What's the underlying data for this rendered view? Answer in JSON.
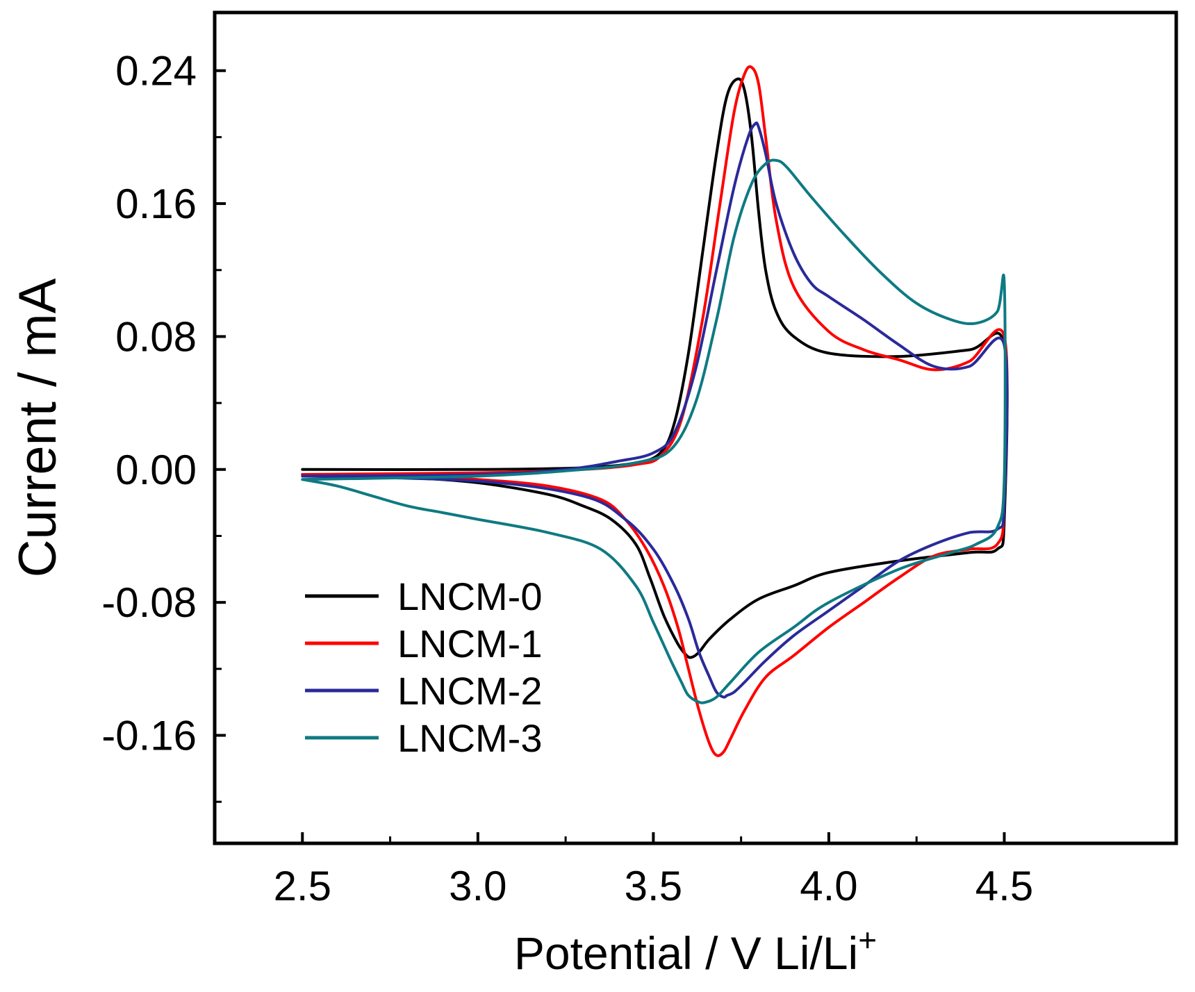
{
  "chart_data": {
    "type": "line",
    "title": "",
    "xlabel": "Potential / V Li/Li",
    "xlabel_superscript": "+",
    "ylabel": "Current / mA",
    "xlim": [
      2.25,
      4.99
    ],
    "ylim": [
      -0.225,
      0.275
    ],
    "xticks": [
      2.5,
      3.0,
      3.5,
      4.0,
      4.5
    ],
    "xtick_labels": [
      "2.5",
      "3.0",
      "3.5",
      "4.0",
      "4.5"
    ],
    "xminor": [
      2.75,
      3.25,
      3.75,
      4.25
    ],
    "yticks": [
      -0.16,
      -0.08,
      0.0,
      0.08,
      0.16,
      0.24
    ],
    "ytick_labels": [
      "-0.16",
      "-0.08",
      "0.00",
      "0.08",
      "0.16",
      "0.24"
    ],
    "yminor": [
      -0.2,
      -0.12,
      -0.04,
      0.04,
      0.12,
      0.2
    ],
    "grid": false,
    "legend_position": "bottom-left",
    "series": [
      {
        "name": "LNCM-0",
        "color": "#000000",
        "x": [
          2.5,
          3.0,
          3.3,
          3.45,
          3.52,
          3.56,
          3.6,
          3.64,
          3.68,
          3.71,
          3.74,
          3.76,
          3.78,
          3.8,
          3.82,
          3.85,
          3.9,
          4.0,
          4.2,
          4.4,
          4.5,
          4.5,
          4.48,
          4.4,
          4.2,
          4.0,
          3.9,
          3.8,
          3.72,
          3.66,
          3.63,
          3.61,
          3.595,
          3.57,
          3.53,
          3.49,
          3.45,
          3.38,
          3.3,
          3.2,
          3.0,
          2.8,
          2.5
        ],
        "y": [
          0.0,
          0.0,
          0.001,
          0.004,
          0.01,
          0.028,
          0.07,
          0.13,
          0.19,
          0.225,
          0.235,
          0.228,
          0.2,
          0.155,
          0.12,
          0.095,
          0.08,
          0.07,
          0.068,
          0.072,
          0.075,
          -0.03,
          -0.048,
          -0.05,
          -0.055,
          -0.062,
          -0.07,
          -0.078,
          -0.09,
          -0.102,
          -0.11,
          -0.113,
          -0.112,
          -0.105,
          -0.088,
          -0.065,
          -0.045,
          -0.03,
          -0.022,
          -0.015,
          -0.008,
          -0.005,
          -0.003
        ]
      },
      {
        "name": "LNCM-1",
        "color": "#ff0000",
        "x": [
          2.5,
          3.0,
          3.3,
          3.45,
          3.52,
          3.58,
          3.64,
          3.69,
          3.73,
          3.76,
          3.78,
          3.8,
          3.82,
          3.85,
          3.9,
          4.0,
          4.1,
          4.2,
          4.3,
          4.4,
          4.5,
          4.5,
          4.48,
          4.4,
          4.3,
          4.2,
          4.1,
          4.0,
          3.9,
          3.82,
          3.76,
          3.72,
          3.7,
          3.68,
          3.66,
          3.63,
          3.6,
          3.57,
          3.53,
          3.48,
          3.42,
          3.35,
          3.2,
          3.0,
          2.8,
          2.5
        ],
        "y": [
          -0.003,
          -0.002,
          0.0,
          0.003,
          0.008,
          0.03,
          0.09,
          0.16,
          0.215,
          0.238,
          0.242,
          0.232,
          0.2,
          0.15,
          0.11,
          0.083,
          0.072,
          0.066,
          0.06,
          0.065,
          0.08,
          -0.02,
          -0.045,
          -0.048,
          -0.052,
          -0.065,
          -0.08,
          -0.095,
          -0.112,
          -0.125,
          -0.145,
          -0.162,
          -0.17,
          -0.172,
          -0.165,
          -0.145,
          -0.12,
          -0.095,
          -0.07,
          -0.048,
          -0.03,
          -0.018,
          -0.01,
          -0.006,
          -0.004,
          -0.003
        ]
      },
      {
        "name": "LNCM-2",
        "color": "#2a2a9a",
        "x": [
          2.5,
          3.0,
          3.25,
          3.4,
          3.5,
          3.56,
          3.62,
          3.68,
          3.73,
          3.77,
          3.79,
          3.8,
          3.82,
          3.85,
          3.9,
          3.95,
          4.0,
          4.1,
          4.2,
          4.3,
          4.4,
          4.5,
          4.5,
          4.48,
          4.4,
          4.3,
          4.2,
          4.1,
          4.0,
          3.9,
          3.82,
          3.76,
          3.73,
          3.71,
          3.7,
          3.68,
          3.66,
          3.63,
          3.6,
          3.56,
          3.5,
          3.42,
          3.3,
          3.0,
          2.5
        ],
        "y": [
          -0.004,
          -0.003,
          0.0,
          0.005,
          0.01,
          0.022,
          0.06,
          0.12,
          0.17,
          0.2,
          0.208,
          0.206,
          0.19,
          0.16,
          0.13,
          0.112,
          0.104,
          0.09,
          0.075,
          0.062,
          0.062,
          0.075,
          -0.02,
          -0.036,
          -0.038,
          -0.045,
          -0.055,
          -0.07,
          -0.085,
          -0.1,
          -0.115,
          -0.128,
          -0.134,
          -0.136,
          -0.137,
          -0.134,
          -0.125,
          -0.11,
          -0.09,
          -0.07,
          -0.048,
          -0.03,
          -0.016,
          -0.007,
          -0.004
        ]
      },
      {
        "name": "LNCM-3",
        "color": "#0e7a82",
        "x": [
          2.5,
          3.0,
          3.3,
          3.45,
          3.55,
          3.62,
          3.68,
          3.73,
          3.78,
          3.82,
          3.85,
          3.88,
          3.95,
          4.05,
          4.15,
          4.25,
          4.35,
          4.42,
          4.48,
          4.5,
          4.5,
          4.48,
          4.42,
          4.35,
          4.2,
          4.0,
          3.9,
          3.8,
          3.72,
          3.68,
          3.65,
          3.63,
          3.6,
          3.58,
          3.55,
          3.5,
          3.45,
          3.35,
          3.2,
          3.0,
          2.9,
          2.8,
          2.7,
          2.6,
          2.5
        ],
        "y": [
          -0.006,
          -0.004,
          0.0,
          0.004,
          0.012,
          0.04,
          0.09,
          0.14,
          0.172,
          0.184,
          0.186,
          0.182,
          0.164,
          0.14,
          0.118,
          0.1,
          0.09,
          0.088,
          0.095,
          0.112,
          -0.005,
          -0.035,
          -0.045,
          -0.05,
          -0.06,
          -0.08,
          -0.095,
          -0.11,
          -0.128,
          -0.137,
          -0.14,
          -0.14,
          -0.136,
          -0.128,
          -0.115,
          -0.092,
          -0.07,
          -0.048,
          -0.038,
          -0.03,
          -0.026,
          -0.022,
          -0.016,
          -0.01,
          -0.006
        ]
      }
    ]
  }
}
